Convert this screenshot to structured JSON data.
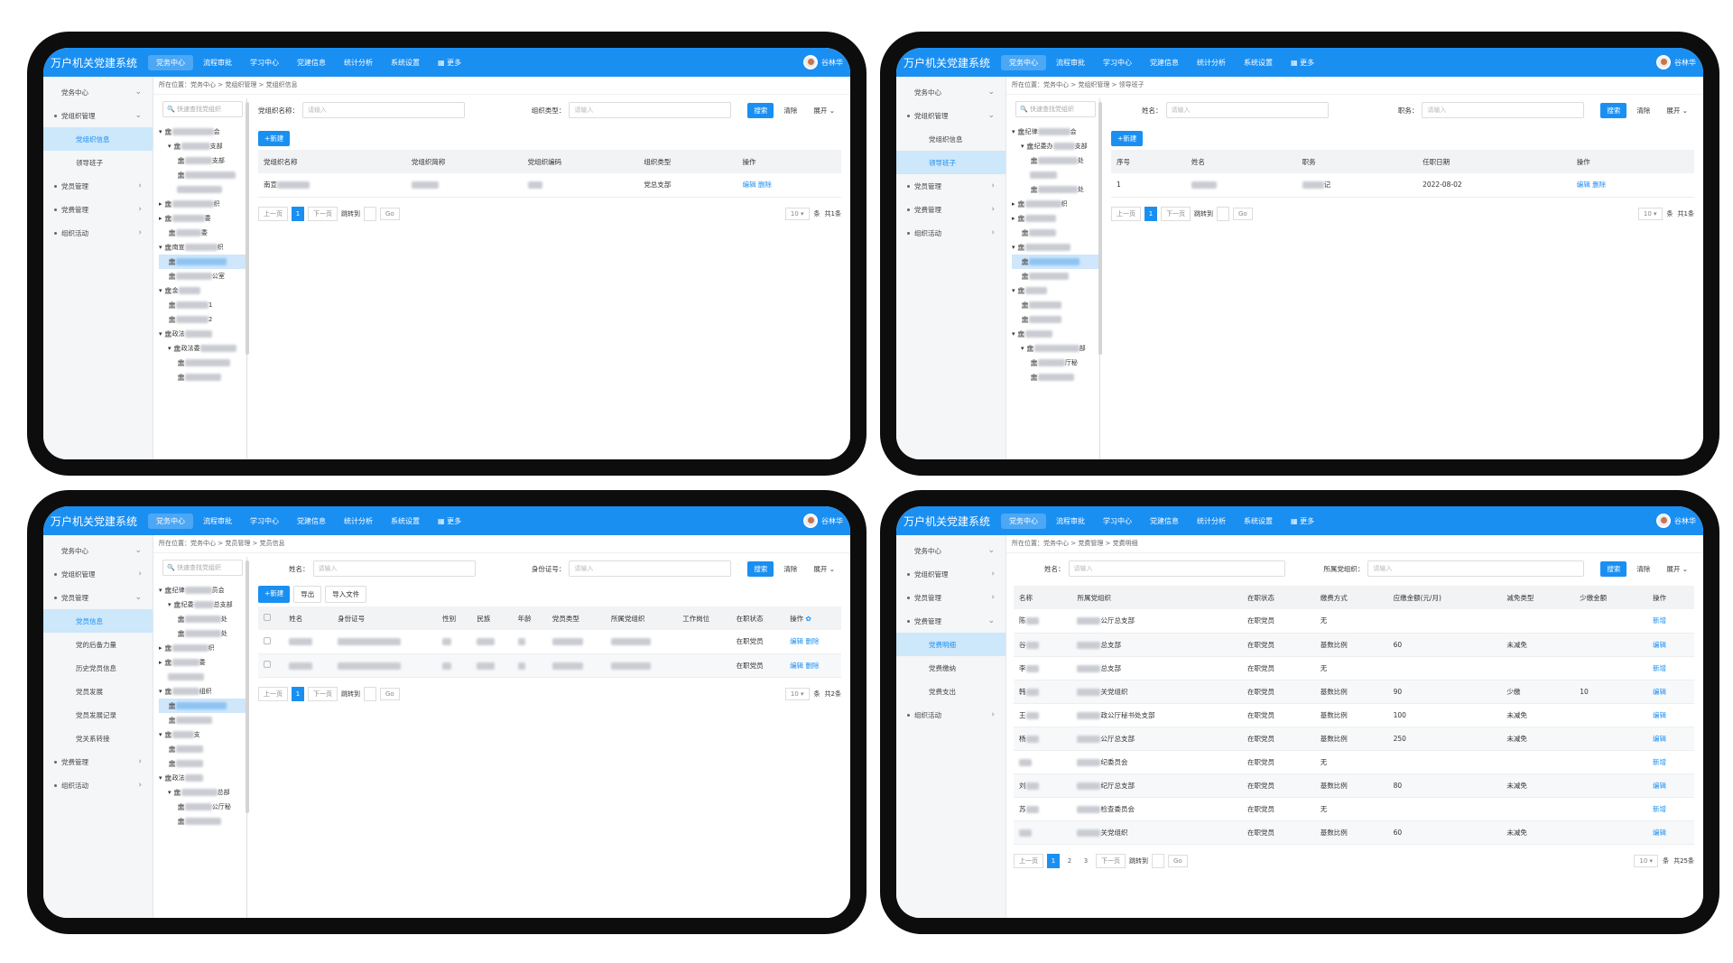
{
  "app": {
    "title": "万户机关党建系统",
    "nav": [
      "党务中心",
      "流程审批",
      "学习中心",
      "党建信息",
      "统计分析",
      "系统设置",
      "▦ 更多"
    ],
    "user": "谷林华"
  },
  "common": {
    "search_btn": "搜索",
    "clear_btn": "清除",
    "expand_btn": "展开 ⌄",
    "new_btn": "+新建",
    "edit": "编辑",
    "delete": "删除",
    "prev": "上一页",
    "next": "下一页",
    "jump": "跳转到",
    "go": "Go",
    "page_size": "10 ▾",
    "per": "条",
    "placeholder": "请输入",
    "tree_search": "🔍 快速查找党组织"
  },
  "sidebar": {
    "top": "党务中心",
    "items": [
      "党组织管理",
      "党组织信息",
      "领导班子",
      "党员管理",
      "党费管理",
      "组织活动",
      "党员信息",
      "党的后备力量",
      "历史党员信息",
      "党员发展",
      "党员发展记录",
      "党关系转接",
      "党费明细",
      "党费缴纳",
      "党费支出"
    ]
  },
  "panel1": {
    "crumb": "所在位置：党务中心 > 党组织管理 > 党组织信息",
    "filter_name": "党组织名称：",
    "filter_type": "组织类型：",
    "cols": [
      "党组织名称",
      "党组织简称",
      "党组织编码",
      "组织类型",
      "操作"
    ],
    "row": {
      "name": "南宣",
      "type": "党总支部"
    },
    "total": "共1条",
    "tree": [
      "会",
      "支部",
      "支部",
      "织",
      "委",
      "委",
      "南宣",
      "织",
      "公室",
      "金",
      "1",
      "2",
      "政法",
      "政法委"
    ]
  },
  "panel2": {
    "crumb": "所在位置：党务中心 > 党组织管理 > 领导班子",
    "filter_name": "姓名：",
    "filter_post": "职务：",
    "cols": [
      "序号",
      "姓名",
      "职务",
      "任职日期",
      "操作"
    ],
    "row": {
      "no": "1",
      "post": "记",
      "date": "2022-08-02"
    },
    "total": "共1条",
    "tree": [
      "纪律",
      "会",
      "纪委办",
      "支部",
      "处",
      "处",
      "织",
      "厅秘",
      "部"
    ]
  },
  "panel3": {
    "crumb": "所在位置：党务中心 > 党员管理 > 党员信息",
    "filter_name": "姓名：",
    "filter_id": "身份证号：",
    "export": "导出",
    "import": "导入文件",
    "cols": [
      "姓名",
      "身份证号",
      "性别",
      "民族",
      "年龄",
      "党员类型",
      "所属党组织",
      "工作岗位",
      "在职状态",
      "操作"
    ],
    "rows": [
      {
        "status": "在职党员"
      },
      {
        "status": "在职党员"
      }
    ],
    "total": "共2条",
    "tree": [
      "纪律",
      "员会",
      "纪委",
      "总支部",
      "处",
      "处",
      "织",
      "委",
      "组织",
      "支",
      "政法",
      "总部",
      "公厅秘"
    ]
  },
  "panel4": {
    "crumb": "所在位置：党务中心 > 党费管理 > 党费明细",
    "filter_name": "姓名：",
    "filter_org": "所属党组织：",
    "cols": [
      "名称",
      "所属党组织",
      "在职状态",
      "缴费方式",
      "应缴金额(元/月)",
      "减免类型",
      "少缴金额",
      "操作"
    ],
    "rows": [
      {
        "name": "陈",
        "org": "公厅总支部",
        "status": "在职党员",
        "mode": "无",
        "amount": "",
        "relief": "",
        "less": "",
        "op": "新增"
      },
      {
        "name": "谷",
        "org": "总支部",
        "status": "在职党员",
        "mode": "基数比例",
        "amount": "60",
        "relief": "未减免",
        "less": "",
        "op": "编辑"
      },
      {
        "name": "李",
        "org": "总支部",
        "status": "在职党员",
        "mode": "无",
        "amount": "",
        "relief": "",
        "less": "",
        "op": "新增"
      },
      {
        "name": "韩",
        "org": "关党组织",
        "status": "在职党员",
        "mode": "基数比例",
        "amount": "90",
        "relief": "少缴",
        "less": "10",
        "op": "编辑"
      },
      {
        "name": "王",
        "org": "政公厅秘书处支部",
        "status": "在职党员",
        "mode": "基数比例",
        "amount": "100",
        "relief": "未减免",
        "less": "",
        "op": "编辑"
      },
      {
        "name": "杨",
        "org": "公厅总支部",
        "status": "在职党员",
        "mode": "基数比例",
        "amount": "250",
        "relief": "未减免",
        "less": "",
        "op": "编辑"
      },
      {
        "name": "",
        "org": "纪委员会",
        "status": "在职党员",
        "mode": "无",
        "amount": "",
        "relief": "",
        "less": "",
        "op": "新增"
      },
      {
        "name": "刘",
        "org": "纪厅总支部",
        "status": "在职党员",
        "mode": "基数比例",
        "amount": "80",
        "relief": "未减免",
        "less": "",
        "op": "编辑"
      },
      {
        "name": "苏",
        "org": "检查委员会",
        "status": "在职党员",
        "mode": "无",
        "amount": "",
        "relief": "",
        "less": "",
        "op": "新增"
      },
      {
        "name": "",
        "org": "关党组织",
        "status": "在职党员",
        "mode": "基数比例",
        "amount": "60",
        "relief": "未减免",
        "less": "",
        "op": "编辑"
      }
    ],
    "pages": [
      "1",
      "2",
      "3"
    ],
    "total": "共25条"
  }
}
